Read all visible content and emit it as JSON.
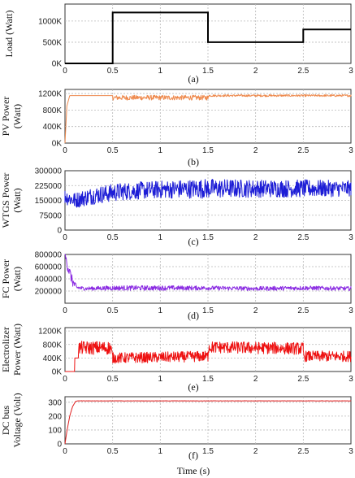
{
  "chart_data": [
    {
      "type": "line",
      "panel": "a",
      "caption": "(a)",
      "ylabel": [
        "Load (Watt)"
      ],
      "xlim": [
        0,
        3
      ],
      "ylim": [
        0,
        1400000
      ],
      "yticks": [
        0,
        500000,
        1000000
      ],
      "ytick_labels": [
        "0K",
        "500K",
        "1000K"
      ],
      "xticks": [
        0,
        0.5,
        1,
        1.5,
        2,
        2.5,
        3
      ],
      "xtick_labels": [
        "0",
        "0.5",
        "1",
        "1.5",
        "2",
        "2.5",
        "3"
      ],
      "grid": true,
      "color": "#000000",
      "series": [
        {
          "x": [
            0,
            0.5,
            0.5,
            1.5,
            1.5,
            2.5,
            2.5,
            3
          ],
          "y": [
            0,
            0,
            1200000,
            1200000,
            500000,
            500000,
            800000,
            800000
          ]
        }
      ]
    },
    {
      "type": "line",
      "panel": "b",
      "caption": "(b)",
      "ylabel": [
        "PV Power",
        "(Watt)"
      ],
      "xlim": [
        0,
        3
      ],
      "ylim": [
        0,
        1300000
      ],
      "yticks": [
        0,
        400000,
        800000,
        1200000
      ],
      "ytick_labels": [
        "0K",
        "400K",
        "800K",
        "1200K"
      ],
      "xticks": [
        0,
        0.5,
        1,
        1.5,
        2,
        2.5,
        3
      ],
      "xtick_labels": [
        "0",
        "0.5",
        "1",
        "1.5",
        "2",
        "2.5",
        "3"
      ],
      "grid": true,
      "color": "#ee8a4e",
      "series": [
        {
          "x": [
            0,
            0.02,
            0.05,
            0.5,
            0.5,
            1.5,
            1.5,
            3
          ],
          "y": [
            0,
            900000,
            1150000,
            1150000,
            1100000,
            1100000,
            1150000,
            1150000
          ],
          "noise": [
            0,
            0,
            0,
            0,
            60000,
            60000,
            25000,
            25000
          ]
        }
      ]
    },
    {
      "type": "line",
      "panel": "c",
      "caption": "(c)",
      "ylabel": [
        "WTGS Power",
        "(Watt)"
      ],
      "xlim": [
        0,
        3
      ],
      "ylim": [
        0,
        300000
      ],
      "yticks": [
        0,
        75000,
        150000,
        225000,
        300000
      ],
      "ytick_labels": [
        "0",
        "75000",
        "150000",
        "225000",
        "300000"
      ],
      "xticks": [
        0,
        0.5,
        1,
        1.5,
        2,
        2.5,
        3
      ],
      "xtick_labels": [
        "0",
        "0.5",
        "1",
        "1.5",
        "2",
        "2.5",
        "3"
      ],
      "grid": true,
      "color": "#1d1dd6",
      "series": [
        {
          "x": [
            0,
            0.1,
            0.3,
            0.6,
            1,
            1.5,
            2,
            2.5,
            3
          ],
          "y": [
            170000,
            150000,
            175000,
            195000,
            205000,
            210000,
            210000,
            210000,
            210000
          ],
          "noise": [
            40000,
            40000,
            45000,
            45000,
            45000,
            50000,
            45000,
            45000,
            40000
          ]
        }
      ]
    },
    {
      "type": "line",
      "panel": "d",
      "caption": "(d)",
      "ylabel": [
        "FC Power",
        "(Watt)"
      ],
      "xlim": [
        0,
        3
      ],
      "ylim": [
        0,
        800000
      ],
      "yticks": [
        200000,
        400000,
        600000,
        800000
      ],
      "ytick_labels": [
        "200000",
        "400000",
        "600000",
        "800000"
      ],
      "xticks": [
        0,
        0.5,
        1,
        1.5,
        2,
        2.5,
        3
      ],
      "xtick_labels": [
        "0",
        "0.5",
        "1",
        "1.5",
        "2",
        "2.5",
        "3"
      ],
      "grid": true,
      "color": "#8a2be2",
      "series": [
        {
          "x": [
            0,
            0.03,
            0.08,
            0.12,
            0.2,
            0.5,
            1,
            1.5,
            2,
            2.5,
            3
          ],
          "y": [
            800000,
            600000,
            350000,
            260000,
            240000,
            250000,
            250000,
            250000,
            240000,
            250000,
            240000
          ],
          "noise": [
            30000,
            100000,
            80000,
            40000,
            30000,
            40000,
            40000,
            35000,
            35000,
            35000,
            35000
          ]
        }
      ]
    },
    {
      "type": "line",
      "panel": "e",
      "caption": "(e)",
      "ylabel": [
        "Electrolizer",
        "Power (Watt)"
      ],
      "xlim": [
        0,
        3
      ],
      "ylim": [
        0,
        1300000
      ],
      "yticks": [
        0,
        400000,
        800000,
        1200000
      ],
      "ytick_labels": [
        "0K",
        "400K",
        "800K",
        "1200K"
      ],
      "xticks": [
        0,
        0.5,
        1,
        1.5,
        2,
        2.5,
        3
      ],
      "xtick_labels": [
        "0",
        "0.5",
        "1",
        "1.5",
        "2",
        "2.5",
        "3"
      ],
      "grid": true,
      "color": "#ee1111",
      "series": [
        {
          "x": [
            0,
            0.1,
            0.1,
            0.14,
            0.14,
            0.48,
            0.5,
            1,
            1.5,
            1.5,
            2,
            2.5,
            2.5,
            3
          ],
          "y": [
            0,
            0,
            400000,
            400000,
            700000,
            700000,
            400000,
            420000,
            450000,
            720000,
            700000,
            680000,
            450000,
            450000
          ],
          "noise": [
            0,
            0,
            0,
            0,
            200000,
            200000,
            160000,
            160000,
            160000,
            180000,
            180000,
            180000,
            160000,
            160000
          ]
        }
      ]
    },
    {
      "type": "line",
      "panel": "f",
      "caption": "(f)",
      "ylabel": [
        "DC bus",
        "Voltage (Volt)"
      ],
      "xlabel": "Time (s)",
      "xlim": [
        0,
        3
      ],
      "ylim": [
        0,
        340
      ],
      "yticks": [
        0,
        100,
        200,
        300
      ],
      "ytick_labels": [
        "0",
        "100",
        "200",
        "300"
      ],
      "xticks": [
        0,
        0.5,
        1,
        1.5,
        2,
        2.5,
        3
      ],
      "xtick_labels": [
        "0",
        "0.5",
        "1",
        "1.5",
        "2",
        "2.5",
        "3"
      ],
      "grid": true,
      "color": "#e02020",
      "series": [
        {
          "x": [
            0,
            0.02,
            0.05,
            0.08,
            0.11,
            0.13,
            3
          ],
          "y": [
            0,
            90,
            200,
            270,
            305,
            310,
            310
          ],
          "noise": [
            0,
            0,
            0,
            0,
            0,
            1,
            1
          ]
        }
      ]
    }
  ]
}
